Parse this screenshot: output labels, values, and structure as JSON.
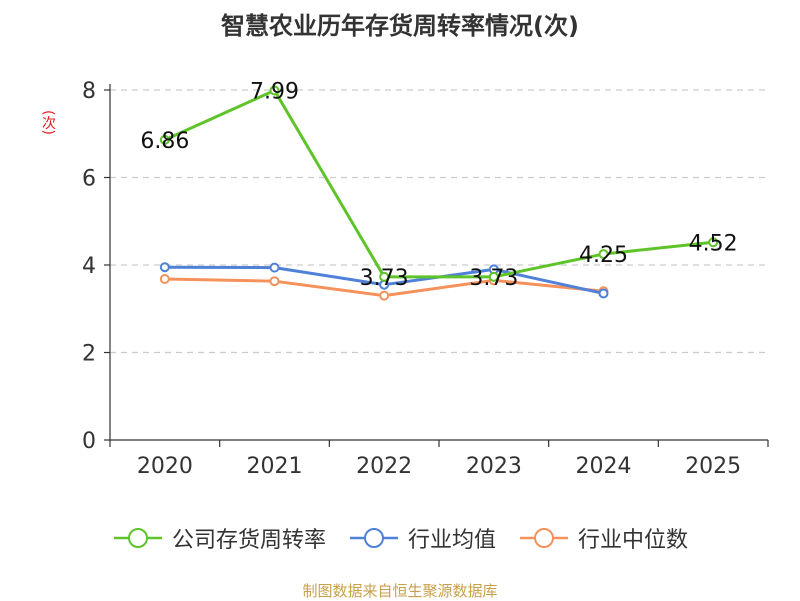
{
  "title": "智慧农业历年存货周转率情况(次)",
  "source": "制图数据来自恒生聚源数据库",
  "chart_data": {
    "type": "line",
    "title": "智慧农业历年存货周转率情况(次)",
    "ylabel": "(次)",
    "xlabel": "",
    "categories": [
      "2020",
      "2021",
      "2022",
      "2023",
      "2024",
      "2025"
    ],
    "ylim": [
      0,
      8
    ],
    "yticks": [
      0,
      2,
      4,
      6,
      8
    ],
    "grid": true,
    "legend_position": "bottom",
    "series": [
      {
        "name": "公司存货周转率",
        "color": "#5ec42a",
        "values": [
          6.86,
          7.99,
          3.73,
          3.73,
          4.25,
          4.52
        ],
        "labels": [
          "6.86",
          "7.99",
          "3.73",
          "3.73",
          "4.25",
          "4.52"
        ]
      },
      {
        "name": "行业均值",
        "color": "#4f81d9",
        "values": [
          3.95,
          3.94,
          3.55,
          3.9,
          3.35,
          null
        ]
      },
      {
        "name": "行业中位数",
        "color": "#f5915a",
        "values": [
          3.68,
          3.63,
          3.3,
          3.65,
          3.4,
          null
        ]
      }
    ]
  }
}
